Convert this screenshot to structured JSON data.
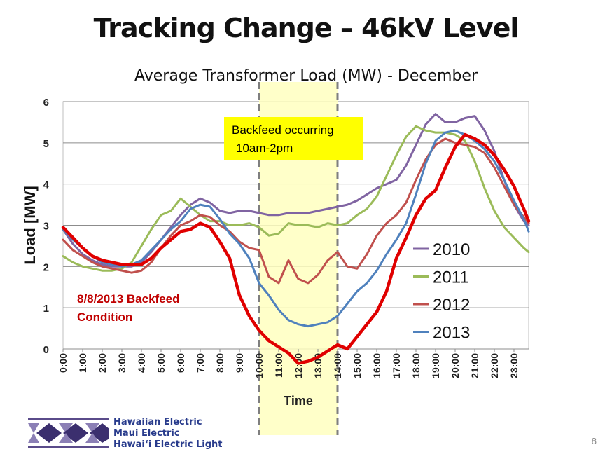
{
  "slide": {
    "title": "Tracking Change – 46kV Level",
    "page_number": "8",
    "brand_lines": [
      "Hawaiian Electric",
      "Maui Electric",
      "Hawai‘i Electric Light"
    ]
  },
  "chart_data": {
    "type": "line",
    "title": "Average Transformer Load (MW) - December",
    "xlabel": "Time",
    "ylabel": "Load [MW]",
    "ylim": [
      0,
      6
    ],
    "yticks": [
      0,
      1,
      2,
      3,
      4,
      5,
      6
    ],
    "grid": true,
    "legend_position": "right",
    "x_tick_labels": [
      "0:00",
      "1:00",
      "2:00",
      "3:00",
      "4:00",
      "5:00",
      "6:00",
      "7:00",
      "8:00",
      "9:00",
      "10:00",
      "11:00",
      "12:00",
      "13:00",
      "14:00",
      "15:00",
      "16:00",
      "17:00",
      "18:00",
      "19:00",
      "20:00",
      "21:00",
      "22:00",
      "23:00"
    ],
    "x_hours": [
      0,
      0.5,
      1,
      1.5,
      2,
      2.5,
      3,
      3.5,
      4,
      4.5,
      5,
      5.5,
      6,
      6.5,
      7,
      7.5,
      8,
      8.5,
      9,
      9.5,
      10,
      10.5,
      11,
      11.5,
      12,
      12.5,
      13,
      13.5,
      14,
      14.5,
      15,
      15.5,
      16,
      16.5,
      17,
      17.5,
      18,
      18.5,
      19,
      19.5,
      20,
      20.5,
      21,
      21.5,
      22,
      22.5,
      23,
      23.5,
      23.75
    ],
    "series": [
      {
        "name": "2010",
        "color": "#8064a2",
        "width": 3,
        "values": [
          2.9,
          2.55,
          2.3,
          2.15,
          2.05,
          2.0,
          2.0,
          2.0,
          2.1,
          2.35,
          2.65,
          2.95,
          3.25,
          3.5,
          3.65,
          3.55,
          3.35,
          3.3,
          3.35,
          3.35,
          3.3,
          3.25,
          3.25,
          3.3,
          3.3,
          3.3,
          3.35,
          3.4,
          3.45,
          3.5,
          3.6,
          3.75,
          3.9,
          4.0,
          4.1,
          4.45,
          4.95,
          5.45,
          5.7,
          5.5,
          5.5,
          5.6,
          5.65,
          5.3,
          4.8,
          4.1,
          3.5,
          3.1,
          3.0
        ]
      },
      {
        "name": "2011",
        "color": "#9bbb59",
        "width": 3,
        "values": [
          2.25,
          2.1,
          2.0,
          1.95,
          1.9,
          1.9,
          1.95,
          2.1,
          2.5,
          2.9,
          3.25,
          3.35,
          3.65,
          3.45,
          3.25,
          3.1,
          3.1,
          3.0,
          3.0,
          3.05,
          2.95,
          2.75,
          2.8,
          3.05,
          3.0,
          3.0,
          2.95,
          3.05,
          3.0,
          3.05,
          3.25,
          3.4,
          3.7,
          4.2,
          4.7,
          5.15,
          5.4,
          5.3,
          5.25,
          5.25,
          5.2,
          5.05,
          4.55,
          3.9,
          3.35,
          2.95,
          2.7,
          2.45,
          2.35
        ]
      },
      {
        "name": "2012",
        "color": "#c0504d",
        "width": 3,
        "values": [
          2.65,
          2.4,
          2.25,
          2.1,
          2.0,
          1.95,
          1.9,
          1.85,
          1.9,
          2.1,
          2.45,
          2.75,
          3.0,
          3.1,
          3.25,
          3.2,
          3.0,
          2.85,
          2.6,
          2.45,
          2.4,
          1.75,
          1.6,
          2.15,
          1.7,
          1.6,
          1.8,
          2.15,
          2.35,
          2.0,
          1.95,
          2.3,
          2.75,
          3.05,
          3.25,
          3.55,
          4.1,
          4.6,
          4.95,
          5.1,
          5.0,
          4.95,
          4.9,
          4.75,
          4.4,
          3.95,
          3.5,
          3.2,
          3.05
        ]
      },
      {
        "name": "2013",
        "color": "#4f81bd",
        "width": 3,
        "values": [
          2.9,
          2.65,
          2.45,
          2.25,
          2.1,
          2.05,
          2.0,
          2.05,
          2.15,
          2.4,
          2.65,
          2.9,
          3.1,
          3.4,
          3.5,
          3.45,
          3.15,
          2.8,
          2.55,
          2.2,
          1.6,
          1.3,
          0.95,
          0.7,
          0.6,
          0.55,
          0.6,
          0.65,
          0.8,
          1.1,
          1.4,
          1.6,
          1.9,
          2.3,
          2.65,
          3.05,
          3.75,
          4.5,
          5.05,
          5.25,
          5.3,
          5.2,
          5.05,
          4.85,
          4.55,
          4.1,
          3.6,
          3.15,
          2.85
        ]
      },
      {
        "name": "8/8/2013 Backfeed Condition",
        "color": "#e00000",
        "width": 4.5,
        "values": [
          2.95,
          2.7,
          2.45,
          2.25,
          2.15,
          2.1,
          2.05,
          2.05,
          2.05,
          2.2,
          2.45,
          2.65,
          2.85,
          2.9,
          3.05,
          2.95,
          2.6,
          2.2,
          1.3,
          0.8,
          0.45,
          0.2,
          0.05,
          -0.1,
          -0.35,
          -0.3,
          -0.2,
          -0.05,
          0.1,
          0.0,
          0.3,
          0.6,
          0.9,
          1.4,
          2.2,
          2.7,
          3.25,
          3.65,
          3.85,
          4.4,
          4.9,
          5.2,
          5.1,
          4.95,
          4.7,
          4.35,
          3.95,
          3.4,
          3.1
        ]
      }
    ],
    "annotations": [
      {
        "type": "shaded_region",
        "from": "10:00",
        "to": "14:00",
        "color": "#ffffc0"
      },
      {
        "type": "label_box",
        "text": "Backfeed occurring 10am-2pm",
        "lines": [
          "Backfeed occurring",
          "10am-2pm"
        ],
        "background": "#ffff00"
      },
      {
        "type": "series_label",
        "series": "8/8/2013 Backfeed Condition",
        "lines": [
          "8/8/2013 Backfeed",
          "Condition"
        ],
        "color": "#c00000"
      }
    ]
  }
}
